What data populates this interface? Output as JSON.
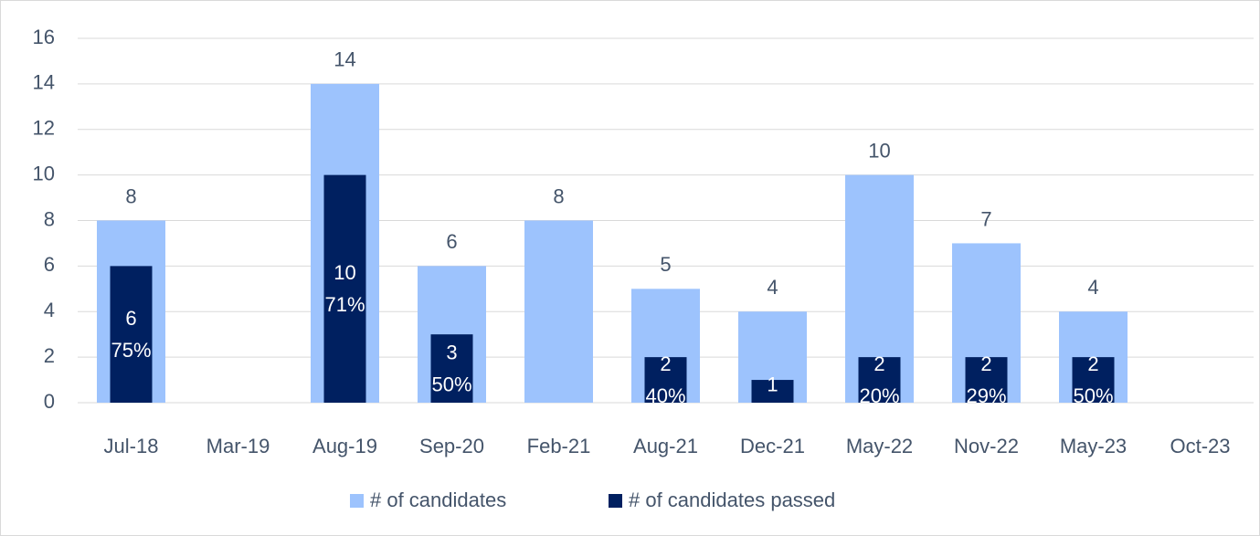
{
  "chart_data": {
    "type": "bar",
    "categories": [
      "Jul-18",
      "Mar-19",
      "Aug-19",
      "Sep-20",
      "Feb-21",
      "Aug-21",
      "Dec-21",
      "May-22",
      "Nov-22",
      "May-23",
      "Oct-23"
    ],
    "series": [
      {
        "name": "# of candidates",
        "color": "#9dc3fd",
        "values": [
          8,
          null,
          14,
          6,
          8,
          5,
          4,
          10,
          7,
          4,
          null
        ]
      },
      {
        "name": "# of candidates passed",
        "color": "#002060",
        "values": [
          6,
          null,
          10,
          3,
          null,
          2,
          1,
          2,
          2,
          2,
          null
        ],
        "rate_labels": [
          "75%",
          null,
          "71%",
          "50%",
          null,
          "40%",
          null,
          "20%",
          "29%",
          "50%",
          null
        ]
      }
    ],
    "ylim": [
      0,
      16
    ],
    "yticks": [
      0,
      2,
      4,
      6,
      8,
      10,
      12,
      14,
      16
    ],
    "grid": true,
    "legend": "bottom"
  }
}
